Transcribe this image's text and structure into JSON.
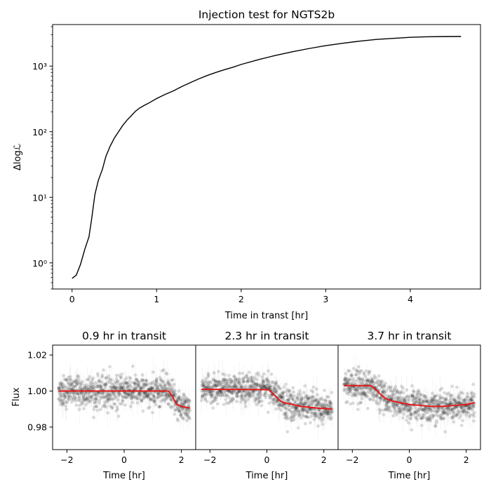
{
  "chart_data": [
    {
      "type": "line",
      "title": "Injection test for NGTS2b",
      "xlabel": "Time in transt [hr]",
      "ylabel": "Δlogℒ",
      "yscale": "log",
      "xlim": [
        -0.23,
        4.83
      ],
      "ylim": [
        0.4,
        4300
      ],
      "xticks": [
        0,
        1,
        2,
        3,
        4
      ],
      "yticks": [
        1,
        10,
        100,
        1000
      ],
      "ytick_labels": [
        "10⁰",
        "10¹",
        "10²",
        "10³"
      ],
      "color": "#000000",
      "series": [
        {
          "x": [
            0.0,
            0.05,
            0.1,
            0.15,
            0.2,
            0.23,
            0.27,
            0.31,
            0.36,
            0.4,
            0.45,
            0.5,
            0.55,
            0.6,
            0.65,
            0.7,
            0.75,
            0.8,
            0.85,
            0.9,
            1.0,
            1.1,
            1.2,
            1.3,
            1.4,
            1.5,
            1.6,
            1.7,
            1.8,
            1.9,
            2.0,
            2.2,
            2.4,
            2.6,
            2.8,
            3.0,
            3.2,
            3.4,
            3.6,
            3.8,
            4.0,
            4.2,
            4.4,
            4.6
          ],
          "y": [
            0.58,
            0.65,
            0.95,
            1.6,
            2.5,
            4.5,
            11,
            18,
            27,
            42,
            60,
            80,
            100,
            125,
            150,
            175,
            205,
            230,
            250,
            270,
            320,
            370,
            420,
            490,
            560,
            640,
            720,
            800,
            880,
            960,
            1060,
            1250,
            1450,
            1650,
            1850,
            2050,
            2230,
            2400,
            2550,
            2650,
            2750,
            2800,
            2820,
            2830
          ]
        }
      ]
    },
    {
      "type": "scatter",
      "title": "0.9 hr in transit",
      "xlabel": "Time [hr]",
      "ylabel": "Flux",
      "xlim": [
        -2.5,
        2.5
      ],
      "ylim": [
        0.9675,
        1.0255
      ],
      "xticks": [
        -2,
        0,
        2
      ],
      "yticks": [
        0.98,
        1.0,
        1.02
      ],
      "ytick_labels": [
        "0.98",
        "1.00",
        "1.02"
      ],
      "scatter_color": "#000000",
      "model_color": "#e8191a",
      "model": {
        "x": [
          -2.3,
          1.45,
          1.55,
          1.65,
          1.75,
          1.85,
          2.0,
          2.3
        ],
        "y": [
          1.0,
          1.0,
          1.0,
          0.998,
          0.995,
          0.9925,
          0.9915,
          0.9905
        ]
      }
    },
    {
      "type": "scatter",
      "title": "2.3 hr in transit",
      "xlabel": "Time [hr]",
      "xlim": [
        -2.5,
        2.5
      ],
      "ylim": [
        0.9675,
        1.0255
      ],
      "xticks": [
        -2,
        0,
        2
      ],
      "scatter_color": "#000000",
      "model_color": "#e8191a",
      "model": {
        "x": [
          -2.3,
          0.05,
          0.15,
          0.25,
          0.35,
          0.45,
          0.6,
          0.8,
          1.0,
          1.2,
          1.5,
          1.8,
          2.1,
          2.3
        ],
        "y": [
          1.001,
          1.0008,
          0.9995,
          0.998,
          0.9965,
          0.9948,
          0.9935,
          0.993,
          0.9922,
          0.9915,
          0.991,
          0.9905,
          0.9902,
          0.99
        ]
      }
    },
    {
      "type": "scatter",
      "title": "3.7 hr in transit",
      "xlabel": "Time [hr]",
      "xlim": [
        -2.5,
        2.5
      ],
      "ylim": [
        0.9675,
        1.0255
      ],
      "xticks": [
        -2,
        0,
        2
      ],
      "scatter_color": "#000000",
      "model_color": "#e8191a",
      "model": {
        "x": [
          -2.3,
          -1.35,
          -1.15,
          -1.0,
          -0.85,
          -0.6,
          -0.3,
          0.0,
          0.4,
          0.8,
          1.2,
          1.6,
          2.0,
          2.3
        ],
        "y": [
          1.003,
          1.003,
          1.0005,
          0.998,
          0.996,
          0.9945,
          0.9935,
          0.9925,
          0.992,
          0.9915,
          0.9915,
          0.992,
          0.9925,
          0.9935
        ]
      }
    }
  ]
}
